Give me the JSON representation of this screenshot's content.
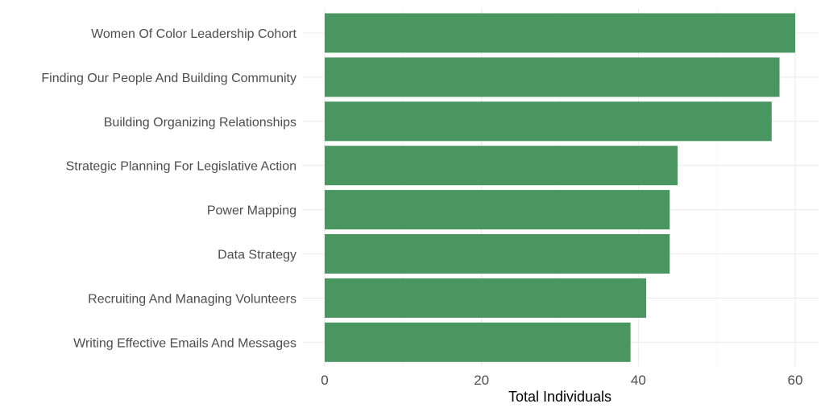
{
  "chart_data": {
    "type": "bar",
    "orientation": "horizontal",
    "categories": [
      "Women Of Color Leadership Cohort",
      "Finding Our People And Building Community",
      "Building Organizing Relationships",
      "Strategic Planning For Legislative Action",
      "Power Mapping",
      "Data Strategy",
      "Recruiting And Managing Volunteers",
      "Writing Effective Emails And Messages"
    ],
    "values": [
      60,
      58,
      57,
      45,
      44,
      44,
      41,
      39
    ],
    "xlabel": "Total Individuals",
    "ylabel": "",
    "xlim": [
      0,
      63
    ],
    "xticks": [
      0,
      20,
      40,
      60
    ],
    "xticks_minor": [
      10,
      30,
      50
    ],
    "bar_color": "#4a9660",
    "grid": true,
    "legend": "none"
  }
}
